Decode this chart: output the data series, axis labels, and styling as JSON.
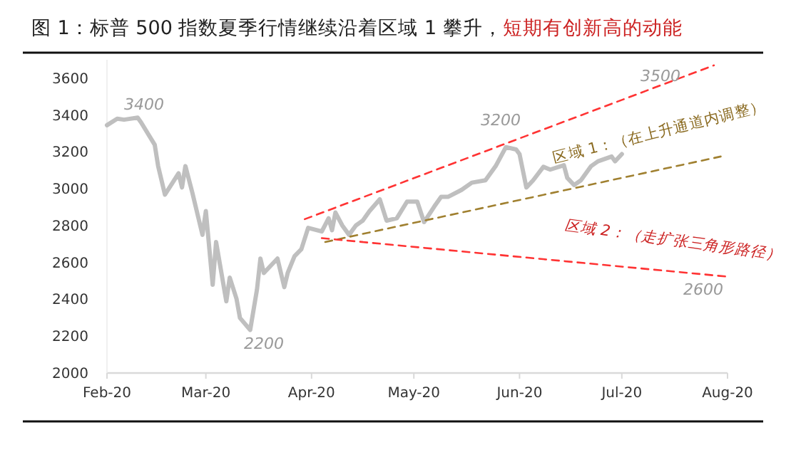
{
  "chart_data": {
    "type": "line",
    "title": "图 1：标普 500 指数夏季行情继续沿着区域 1 攀升，",
    "subtitle": "短期有创新高的动能",
    "xlim": [
      "2020-02-01",
      "2020-08-01"
    ],
    "xticks": [
      {
        "value": "2020-02-01",
        "label": "Feb-20"
      },
      {
        "value": "2020-03-01",
        "label": "Mar-20"
      },
      {
        "value": "2020-04-01",
        "label": "Apr-20"
      },
      {
        "value": "2020-05-01",
        "label": "May-20"
      },
      {
        "value": "2020-06-01",
        "label": "Jun-20"
      },
      {
        "value": "2020-07-01",
        "label": "Jul-20"
      },
      {
        "value": "2020-08-01",
        "label": "Aug-20"
      }
    ],
    "ylim": [
      2000,
      3700
    ],
    "yticks": [
      2000,
      2200,
      2400,
      2600,
      2800,
      3000,
      3200,
      3400,
      3600
    ],
    "grid": false,
    "marker": "none",
    "series": [
      {
        "color": "#bfbfbf",
        "line_style": "solid",
        "x": [
          "2020-02-01",
          "2020-02-04",
          "2020-02-06",
          "2020-02-10",
          "2020-02-11",
          "2020-02-15",
          "2020-02-16",
          "2020-02-18",
          "2020-02-22",
          "2020-02-23",
          "2020-02-24",
          "2020-02-26",
          "2020-02-29",
          "2020-03-01",
          "2020-03-03",
          "2020-03-04",
          "2020-03-07",
          "2020-03-08",
          "2020-03-10",
          "2020-03-11",
          "2020-03-14",
          "2020-03-16",
          "2020-03-17",
          "2020-03-18",
          "2020-03-22",
          "2020-03-24",
          "2020-03-25",
          "2020-03-27",
          "2020-03-29",
          "2020-03-31",
          "2020-04-04",
          "2020-04-06",
          "2020-04-07",
          "2020-04-08",
          "2020-04-10",
          "2020-04-12",
          "2020-04-14",
          "2020-04-16",
          "2020-04-18",
          "2020-04-21",
          "2020-04-23",
          "2020-04-26",
          "2020-04-29",
          "2020-05-02",
          "2020-05-04",
          "2020-05-07",
          "2020-05-09",
          "2020-05-11",
          "2020-05-15",
          "2020-05-18",
          "2020-05-22",
          "2020-05-25",
          "2020-05-28",
          "2020-05-31",
          "2020-06-01",
          "2020-06-03",
          "2020-06-05",
          "2020-06-08",
          "2020-06-10",
          "2020-06-14",
          "2020-06-15",
          "2020-06-17",
          "2020-06-19",
          "2020-06-22",
          "2020-06-24",
          "2020-06-28",
          "2020-06-29",
          "2020-07-01"
        ],
        "values": [
          3345,
          3380,
          3375,
          3386,
          3360,
          3239,
          3123,
          2968,
          3084,
          3007,
          3123,
          2981,
          2750,
          2879,
          2479,
          2711,
          2389,
          2518,
          2402,
          2299,
          2234,
          2454,
          2621,
          2543,
          2621,
          2466,
          2543,
          2634,
          2672,
          2788,
          2768,
          2840,
          2775,
          2871,
          2801,
          2750,
          2801,
          2827,
          2879,
          2943,
          2827,
          2840,
          2930,
          2930,
          2819,
          2904,
          2956,
          2956,
          2994,
          3033,
          3046,
          3123,
          3226,
          3213,
          3188,
          3007,
          3046,
          3119,
          3104,
          3128,
          3059,
          3020,
          3046,
          3123,
          3149,
          3175,
          3149,
          3188
        ]
      },
      {
        "color": "#ff3333",
        "line_style": "dashed",
        "x": [
          "2020-03-30",
          "2020-07-28"
        ],
        "values": [
          2835,
          3670
        ]
      },
      {
        "color": "#a08030",
        "line_style": "dashed",
        "x": [
          "2020-04-05",
          "2020-07-30"
        ],
        "values": [
          2711,
          3175
        ]
      },
      {
        "color": "#ff3333",
        "line_style": "dashed",
        "x": [
          "2020-04-04",
          "2020-08-01"
        ],
        "values": [
          2732,
          2523
        ]
      }
    ],
    "annotations": [
      "3400",
      "2200",
      "3200",
      "3500",
      "2600",
      "区域 1：（在上升通道内调整）",
      "区域 2：（走扩张三角形路径）"
    ]
  }
}
